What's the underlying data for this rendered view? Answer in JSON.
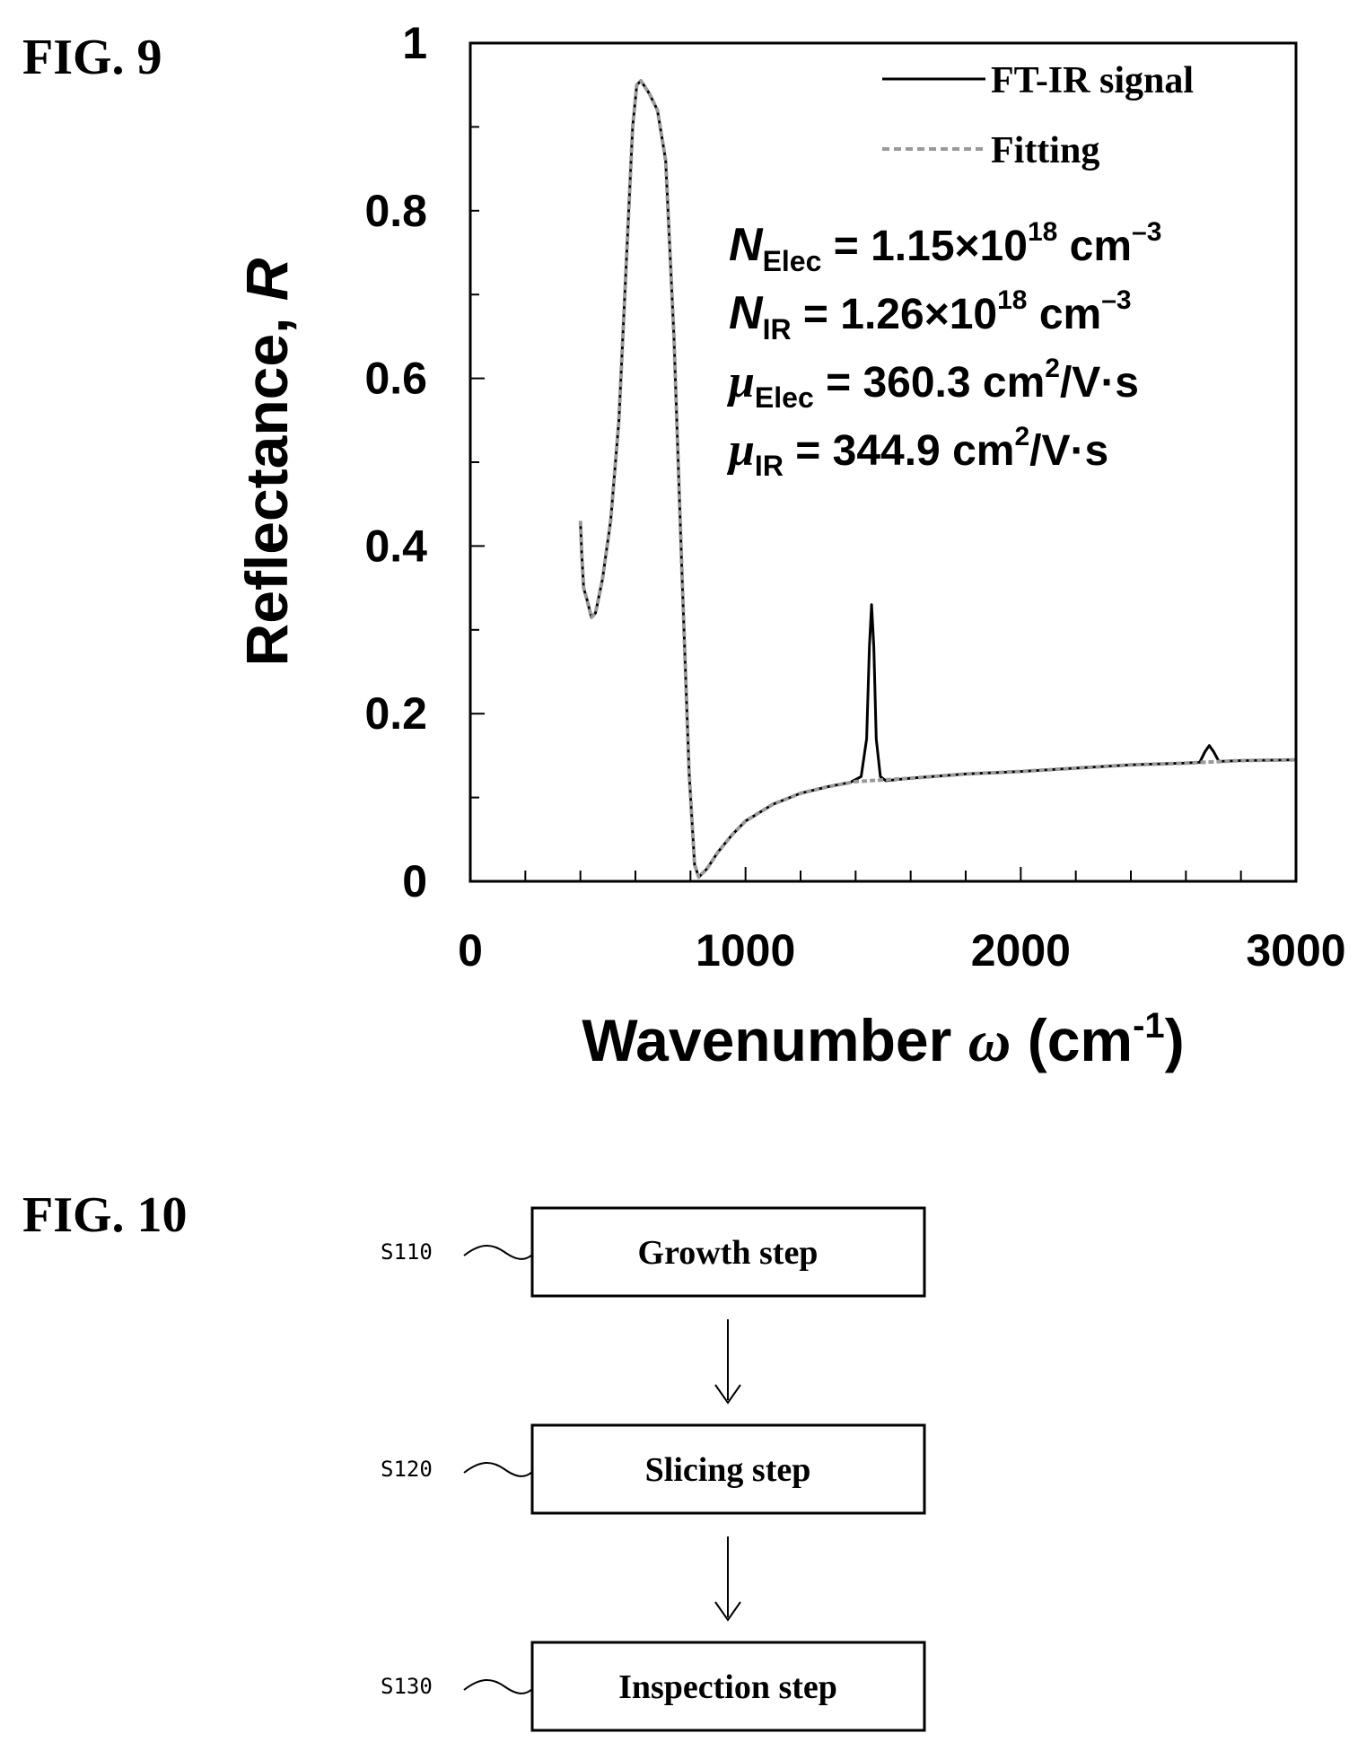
{
  "figure9": {
    "label": "FIG. 9",
    "xlabel_main": "Wavenumber ",
    "xlabel_symbol": "ω",
    "xlabel_unit_pre": " (cm",
    "xlabel_unit_sup": "-1",
    "xlabel_unit_post": ")",
    "ylabel_main": "Reflectance, ",
    "ylabel_symbol": "R",
    "annotations": [
      {
        "symbol": "N",
        "sub": "Elec",
        "value": " = 1.15×10",
        "sup": "18",
        "unit": " cm",
        "unit_sup": "–3"
      },
      {
        "symbol": "N",
        "sub": "IR",
        "value": " = 1.26×10",
        "sup": "18",
        "unit": " cm",
        "unit_sup": "–3"
      },
      {
        "symbol": "μ",
        "sub": "Elec",
        "value": " = 360.3 cm",
        "sup": "2",
        "unit": "/V·s",
        "unit_sup": ""
      },
      {
        "symbol": "μ",
        "sub": "IR",
        "value": " = 344.9 cm",
        "sup": "2",
        "unit": "/V·s",
        "unit_sup": ""
      }
    ]
  },
  "chart_data": {
    "type": "line",
    "title": "",
    "xlabel": "Wavenumber ω (cm-1)",
    "ylabel": "Reflectance, R",
    "xlim": [
      0,
      3000
    ],
    "ylim": [
      0,
      1
    ],
    "x_ticks": [
      0,
      1000,
      2000,
      3000
    ],
    "x_tick_labels": [
      "0",
      "1000",
      "2000",
      "3000"
    ],
    "y_ticks": [
      0,
      0.2,
      0.4,
      0.6,
      0.8,
      1
    ],
    "y_tick_labels": [
      "0",
      "0.2",
      "0.4",
      "0.6",
      "0.8",
      "1"
    ],
    "grid": false,
    "legend_position": "top-right",
    "series": [
      {
        "name": "FT-IR signal",
        "style": "solid",
        "color": "#000000",
        "points": [
          [
            400,
            0.43
          ],
          [
            405,
            0.39
          ],
          [
            412,
            0.35
          ],
          [
            425,
            0.335
          ],
          [
            440,
            0.315
          ],
          [
            455,
            0.32
          ],
          [
            480,
            0.36
          ],
          [
            510,
            0.43
          ],
          [
            540,
            0.55
          ],
          [
            570,
            0.76
          ],
          [
            590,
            0.9
          ],
          [
            605,
            0.95
          ],
          [
            620,
            0.955
          ],
          [
            650,
            0.94
          ],
          [
            680,
            0.92
          ],
          [
            710,
            0.86
          ],
          [
            740,
            0.65
          ],
          [
            770,
            0.36
          ],
          [
            795,
            0.13
          ],
          [
            815,
            0.02
          ],
          [
            830,
            0.005
          ],
          [
            860,
            0.015
          ],
          [
            900,
            0.035
          ],
          [
            950,
            0.055
          ],
          [
            1000,
            0.072
          ],
          [
            1100,
            0.092
          ],
          [
            1200,
            0.105
          ],
          [
            1300,
            0.113
          ],
          [
            1380,
            0.118
          ],
          [
            1420,
            0.125
          ],
          [
            1440,
            0.17
          ],
          [
            1450,
            0.28
          ],
          [
            1458,
            0.33
          ],
          [
            1466,
            0.28
          ],
          [
            1475,
            0.17
          ],
          [
            1490,
            0.125
          ],
          [
            1510,
            0.12
          ],
          [
            1600,
            0.123
          ],
          [
            1800,
            0.128
          ],
          [
            2000,
            0.131
          ],
          [
            2200,
            0.135
          ],
          [
            2400,
            0.139
          ],
          [
            2600,
            0.141
          ],
          [
            2650,
            0.142
          ],
          [
            2670,
            0.155
          ],
          [
            2685,
            0.162
          ],
          [
            2700,
            0.155
          ],
          [
            2720,
            0.143
          ],
          [
            2800,
            0.144
          ],
          [
            3000,
            0.145
          ]
        ]
      },
      {
        "name": "Fitting",
        "style": "dashed",
        "color": "#9a9a9a",
        "points": [
          [
            400,
            0.43
          ],
          [
            405,
            0.39
          ],
          [
            412,
            0.35
          ],
          [
            425,
            0.335
          ],
          [
            440,
            0.315
          ],
          [
            455,
            0.32
          ],
          [
            480,
            0.36
          ],
          [
            510,
            0.43
          ],
          [
            540,
            0.55
          ],
          [
            570,
            0.76
          ],
          [
            590,
            0.9
          ],
          [
            605,
            0.95
          ],
          [
            620,
            0.955
          ],
          [
            650,
            0.94
          ],
          [
            680,
            0.92
          ],
          [
            710,
            0.86
          ],
          [
            740,
            0.65
          ],
          [
            770,
            0.36
          ],
          [
            795,
            0.13
          ],
          [
            815,
            0.02
          ],
          [
            830,
            0.005
          ],
          [
            860,
            0.015
          ],
          [
            900,
            0.035
          ],
          [
            950,
            0.055
          ],
          [
            1000,
            0.072
          ],
          [
            1100,
            0.092
          ],
          [
            1200,
            0.105
          ],
          [
            1300,
            0.113
          ],
          [
            1400,
            0.119
          ],
          [
            1500,
            0.121
          ],
          [
            1600,
            0.123
          ],
          [
            1800,
            0.128
          ],
          [
            2000,
            0.131
          ],
          [
            2200,
            0.135
          ],
          [
            2400,
            0.139
          ],
          [
            2600,
            0.141
          ],
          [
            2800,
            0.144
          ],
          [
            3000,
            0.145
          ]
        ]
      }
    ]
  },
  "figure10": {
    "label": "FIG. 10",
    "steps": [
      {
        "id": "S110",
        "label": "Growth step"
      },
      {
        "id": "S120",
        "label": "Slicing step"
      },
      {
        "id": "S130",
        "label": "Inspection step"
      }
    ]
  }
}
